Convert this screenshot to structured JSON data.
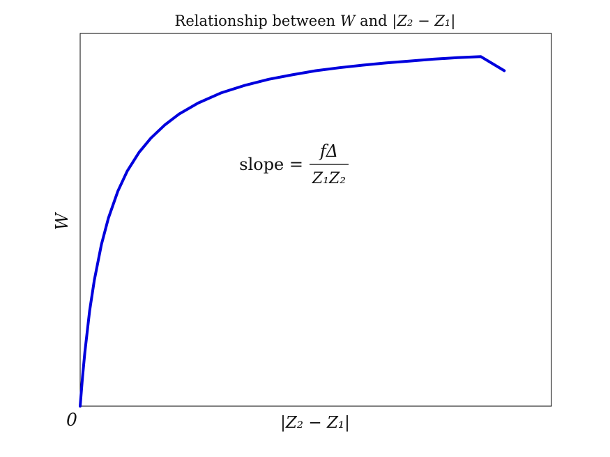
{
  "chart_data": {
    "type": "line",
    "title": {
      "text": "Relationship between",
      "var_a": "W",
      "conj": "and",
      "var_b": "|Z₂ − Z₁|"
    },
    "xlabel": "|Z₂ − Z₁|",
    "ylabel": "W",
    "origin_label": "0",
    "annotation": {
      "lhs": "slope =",
      "numerator": "fΔ",
      "denominator": "Z₁Z₂"
    },
    "xlim": [
      0,
      1
    ],
    "ylim": [
      0,
      1
    ],
    "grid": false,
    "legend": "none",
    "series": [
      {
        "color": "#0000dd",
        "x": [
          0,
          0.002,
          0.005,
          0.01,
          0.02,
          0.03,
          0.045,
          0.06,
          0.08,
          0.1,
          0.125,
          0.15,
          0.18,
          0.21,
          0.25,
          0.3,
          0.35,
          0.4,
          0.45,
          0.5,
          0.55,
          0.6,
          0.65,
          0.7,
          0.75,
          0.8,
          0.85,
          0.9
        ],
        "y": [
          0,
          0.033,
          0.079,
          0.146,
          0.255,
          0.338,
          0.433,
          0.505,
          0.577,
          0.631,
          0.681,
          0.719,
          0.755,
          0.784,
          0.813,
          0.841,
          0.861,
          0.877,
          0.889,
          0.9,
          0.908,
          0.915,
          0.921,
          0.926,
          0.931,
          0.935,
          0.938,
          0.9
        ]
      }
    ]
  }
}
